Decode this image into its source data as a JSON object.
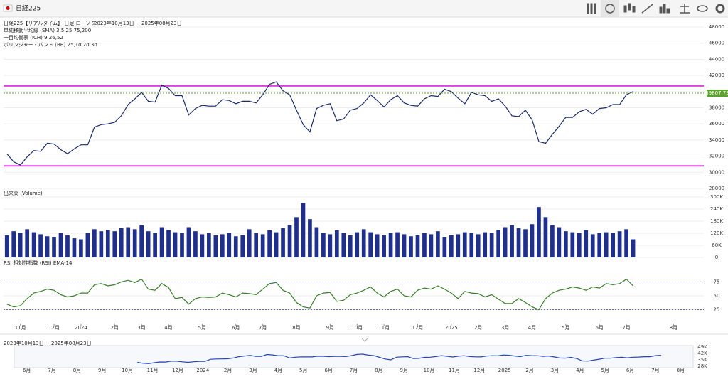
{
  "header": {
    "title": "日経225"
  },
  "chart_data": [
    {
      "type": "line",
      "title": "日経225【リアルタイム】 日足 ローソク",
      "subtitle": "2023年10月13日 ~ 2025年08月23日",
      "annotations": [
        "単純移動平均線 (SMA) 3,5,25,75,200",
        "一目均衡表 (ICH) 9,26,52",
        "ボリンジャー・バンド (BB) 25,1σ,2σ,3σ"
      ],
      "categories": [
        null,
        null,
        "11月",
        null,
        null,
        null,
        null,
        "12月",
        null,
        null,
        null,
        "2024",
        null,
        null,
        null,
        null,
        "2月",
        null,
        null,
        null,
        "3月",
        null,
        null,
        null,
        "4月",
        null,
        null,
        null,
        null,
        "5月",
        null,
        null,
        null,
        null,
        "6月",
        null,
        null,
        null,
        "7月",
        null,
        null,
        null,
        null,
        "8月",
        null,
        null,
        null,
        null,
        "9月",
        null,
        null,
        null,
        "10月",
        null,
        null,
        null,
        "11月",
        null,
        null,
        null,
        null,
        "12月",
        null,
        null,
        null,
        null,
        "2025",
        null,
        null,
        null,
        "2月",
        null,
        null,
        null,
        "3月",
        null,
        null,
        null,
        "4月",
        null,
        null,
        null,
        null,
        "5月",
        null,
        null,
        null,
        null,
        "6月",
        null,
        null,
        null,
        "7月",
        null,
        null,
        null,
        null,
        null,
        null,
        "8月",
        null,
        null,
        null,
        null
      ],
      "values": [
        32300,
        31300,
        30900,
        31900,
        32700,
        32600,
        33600,
        33500,
        32800,
        32300,
        32900,
        33400,
        33400,
        35600,
        35900,
        36000,
        36200,
        37000,
        38400,
        39100,
        39900,
        38800,
        38700,
        40800,
        40400,
        39500,
        39500,
        37100,
        37900,
        38300,
        38200,
        38200,
        39000,
        38900,
        38500,
        38800,
        38800,
        38600,
        39600,
        40900,
        41200,
        40100,
        39600,
        37700,
        35900,
        35000,
        37900,
        38300,
        38500,
        36400,
        36600,
        37700,
        37900,
        38600,
        39600,
        38900,
        38100,
        39000,
        39500,
        38600,
        38300,
        38200,
        39100,
        39500,
        39400,
        40300,
        40000,
        39200,
        38500,
        39900,
        39600,
        39500,
        38800,
        39100,
        38200,
        37000,
        36900,
        37700,
        36500,
        33800,
        33600,
        34700,
        35700,
        36800,
        36800,
        37500,
        37800,
        37200,
        37900,
        38000,
        38400,
        38400,
        39600,
        40000,
        null,
        null,
        null,
        null,
        null,
        null,
        null,
        null,
        null,
        null
      ],
      "color": "#1a2a6c",
      "last_price": 39807.73,
      "last_price_color": "#5aa02c",
      "hlines": [
        40700,
        30800
      ],
      "hline_color": "#e040e0",
      "ylim": [
        28000,
        48000
      ],
      "yticks": [
        28000,
        30000,
        32000,
        34000,
        36000,
        38000,
        40000,
        42000,
        44000,
        46000,
        48000
      ],
      "grid": true
    },
    {
      "type": "bar",
      "title": "出来高 (Volume)",
      "color": "#1f2f8c",
      "values": [
        110000,
        130000,
        120000,
        140000,
        125000,
        115000,
        105000,
        100000,
        120000,
        110000,
        95000,
        90000,
        120000,
        140000,
        130000,
        135000,
        130000,
        145000,
        150000,
        140000,
        160000,
        130000,
        120000,
        150000,
        135000,
        125000,
        120000,
        150000,
        130000,
        115000,
        120000,
        110000,
        115000,
        120000,
        105000,
        110000,
        140000,
        120000,
        115000,
        135000,
        125000,
        145000,
        160000,
        200000,
        270000,
        190000,
        150000,
        120000,
        115000,
        135000,
        120000,
        110000,
        125000,
        140000,
        125000,
        115000,
        110000,
        120000,
        125000,
        115000,
        105000,
        110000,
        120000,
        115000,
        130000,
        100000,
        110000,
        115000,
        125000,
        120000,
        115000,
        125000,
        120000,
        135000,
        150000,
        160000,
        145000,
        140000,
        165000,
        250000,
        200000,
        160000,
        150000,
        130000,
        125000,
        120000,
        135000,
        115000,
        120000,
        125000,
        120000,
        130000,
        140000,
        90000
      ],
      "ylim": [
        0,
        300000
      ],
      "yticks": [
        0,
        {
          "value": 60000,
          "label": "60K"
        },
        {
          "value": 120000,
          "label": "120K"
        },
        {
          "value": 180000,
          "label": "180K"
        },
        {
          "value": 240000,
          "label": "240K"
        },
        {
          "value": 300000,
          "label": "300K"
        }
      ],
      "grid": true
    },
    {
      "type": "line",
      "title": "RSI 相対性指数 (RSI) EMA-14",
      "color": "#3a7d2a",
      "values": [
        35,
        30,
        32,
        45,
        55,
        58,
        62,
        60,
        52,
        48,
        50,
        55,
        55,
        70,
        72,
        68,
        70,
        75,
        78,
        74,
        80,
        62,
        60,
        72,
        65,
        45,
        47,
        35,
        45,
        48,
        47,
        48,
        55,
        52,
        48,
        55,
        54,
        52,
        62,
        72,
        74,
        60,
        55,
        38,
        30,
        28,
        50,
        55,
        56,
        40,
        42,
        52,
        55,
        60,
        66,
        55,
        48,
        58,
        62,
        50,
        48,
        60,
        64,
        62,
        68,
        62,
        55,
        45,
        58,
        55,
        54,
        48,
        52,
        44,
        36,
        36,
        45,
        38,
        30,
        25,
        45,
        55,
        60,
        62,
        66,
        64,
        60,
        66,
        64,
        72,
        70,
        72,
        80,
        68
      ],
      "hlines": [
        75,
        25
      ],
      "hline_color": "#3344aa",
      "ylim": [
        0,
        100
      ],
      "yticks": [
        25,
        50,
        75
      ],
      "grid": true
    },
    {
      "type": "line",
      "title": "2023年10月13日 ~ 2025年08月23日",
      "color": "#2244bb",
      "categories": [
        "6月",
        "7月",
        "8月",
        "9月",
        "10月",
        "11月",
        "12月",
        "2024",
        "2月",
        "3月",
        "4月",
        "5月",
        "6月",
        "7月",
        "8月",
        "9月",
        "10月",
        "11月",
        "12月",
        "2025",
        "2月",
        "3月",
        "4月",
        "5月",
        "6月",
        "7月",
        "8月"
      ],
      "ylim": [
        28000,
        49000
      ],
      "yticks": [
        {
          "value": 28000,
          "label": "28K"
        },
        {
          "value": 35000,
          "label": "35K"
        },
        {
          "value": 42000,
          "label": "42K"
        },
        {
          "value": 49000,
          "label": "49K"
        }
      ]
    }
  ]
}
